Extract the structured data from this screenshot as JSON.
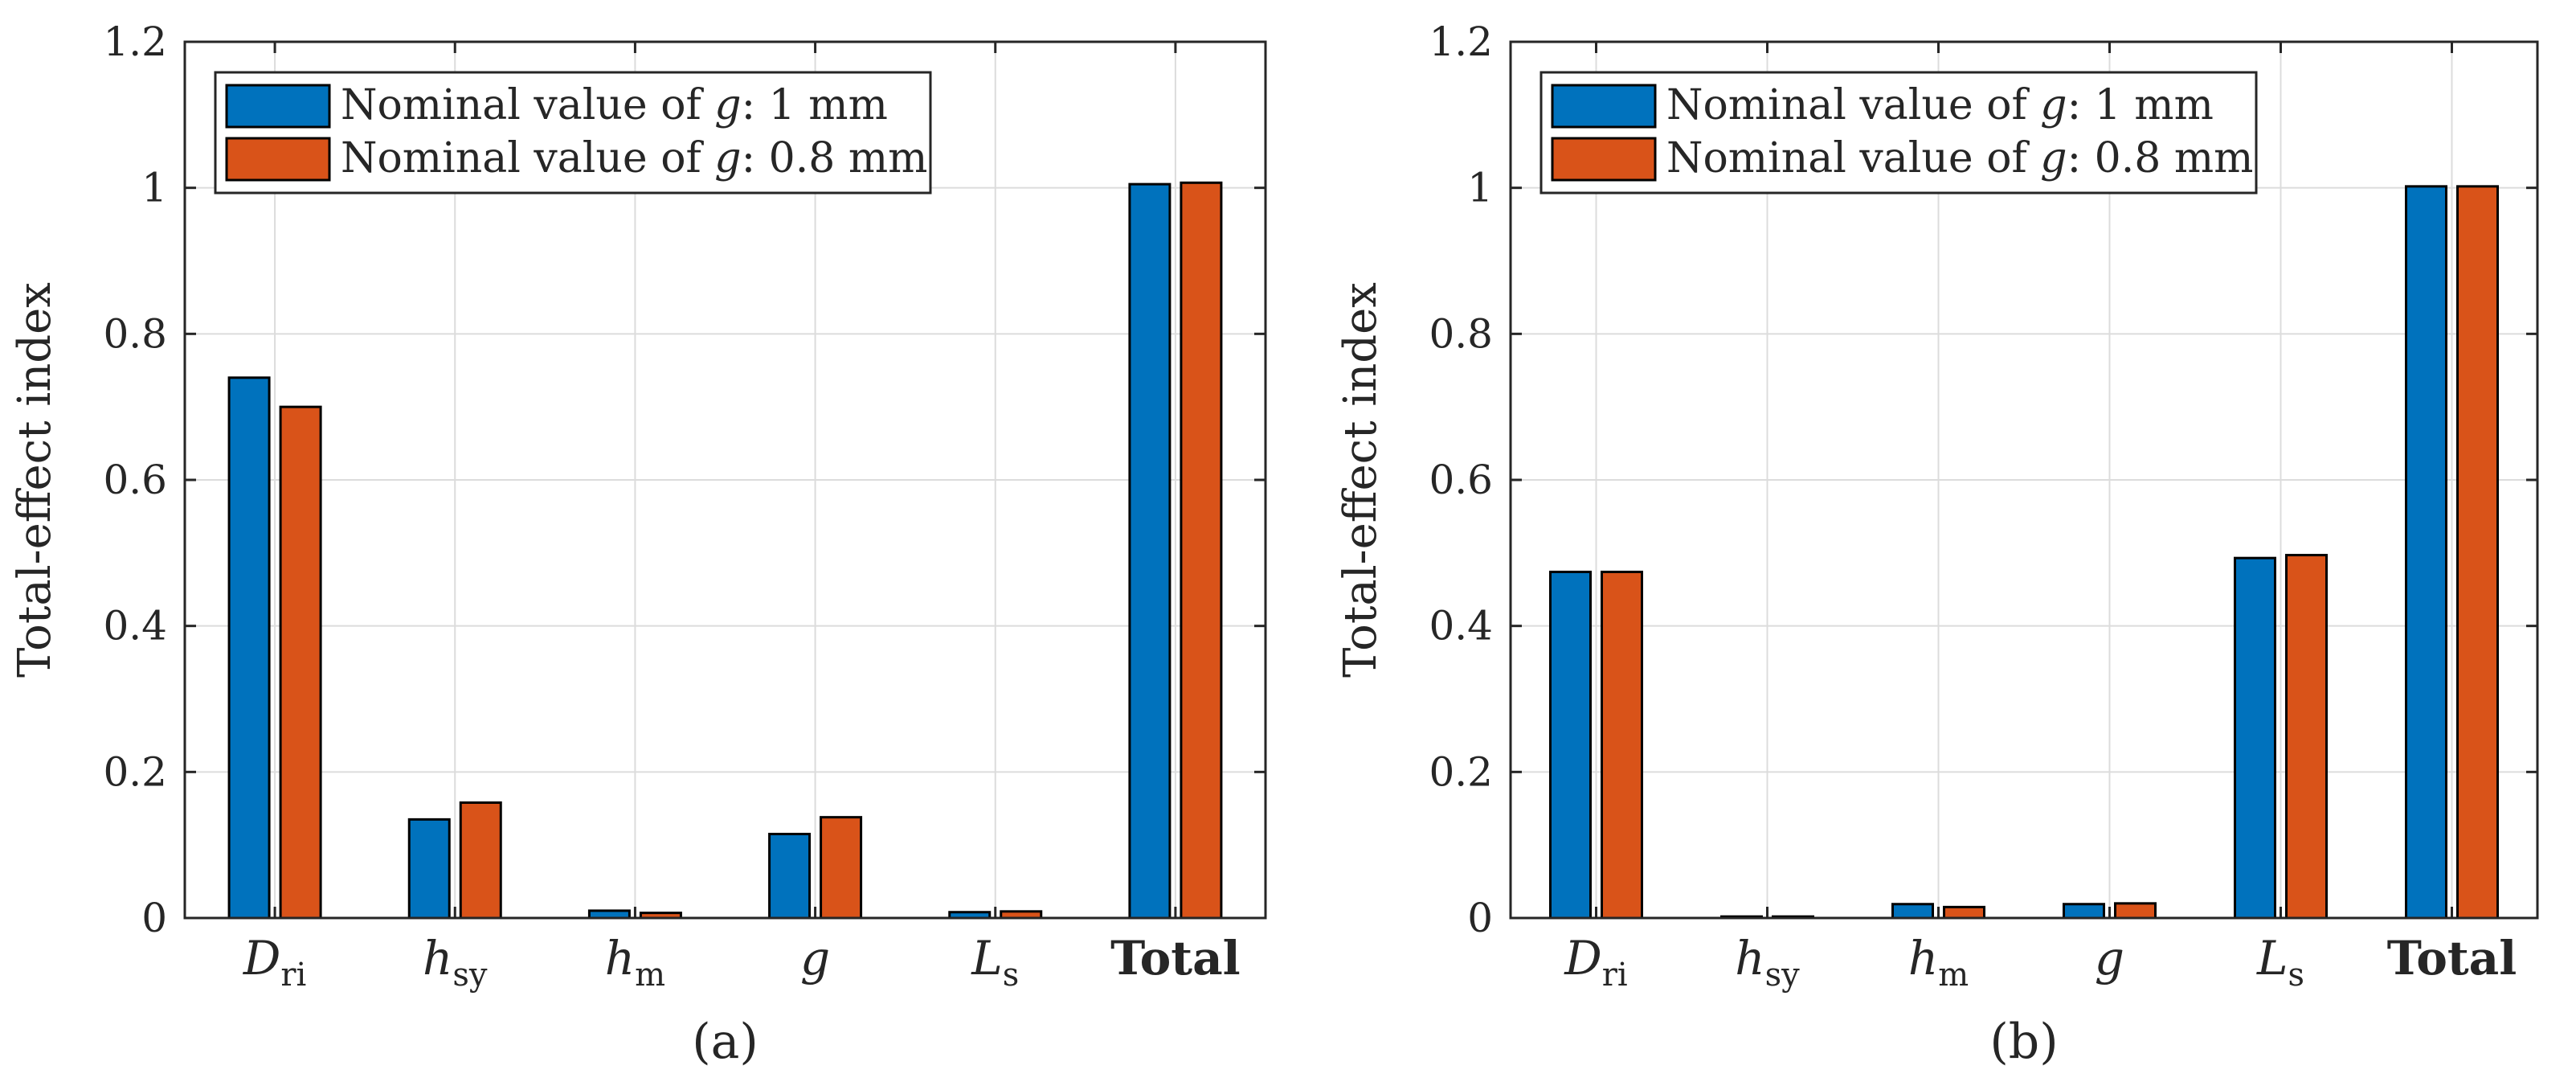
{
  "colors": {
    "series_1": "#0072BD",
    "series_2": "#D95319",
    "grid": "#dcdcdc",
    "axis": "#262626"
  },
  "chart_data": [
    {
      "type": "bar",
      "caption": "(a)",
      "ylabel": "Total-effect index",
      "xlabel": "",
      "ylim": [
        0,
        1.2
      ],
      "yticks": [
        0,
        0.2,
        0.4,
        0.6,
        0.8,
        1,
        1.2
      ],
      "grid": true,
      "legend_position": "top-left",
      "categories": [
        {
          "base": "D",
          "sub": "ri",
          "italic": true,
          "bold": false
        },
        {
          "base": "h",
          "sub": "sy",
          "italic": true,
          "bold": false
        },
        {
          "base": "h",
          "sub": "m",
          "italic": true,
          "bold": false
        },
        {
          "base": "g",
          "sub": "",
          "italic": true,
          "bold": false
        },
        {
          "base": "L",
          "sub": "s",
          "italic": true,
          "bold": false
        },
        {
          "base": "Total",
          "sub": "",
          "italic": false,
          "bold": true
        }
      ],
      "series": [
        {
          "name": "Nominal value of g: 1 mm",
          "label_pre": "Nominal value of ",
          "label_var": "g",
          "label_post": ": 1 mm",
          "values": [
            0.74,
            0.135,
            0.01,
            0.115,
            0.008,
            1.005
          ]
        },
        {
          "name": "Nominal value of g: 0.8 mm",
          "label_pre": "Nominal value of ",
          "label_var": "g",
          "label_post": ": 0.8 mm",
          "values": [
            0.7,
            0.158,
            0.007,
            0.138,
            0.009,
            1.007
          ]
        }
      ]
    },
    {
      "type": "bar",
      "caption": "(b)",
      "ylabel": "Total-effect index",
      "xlabel": "",
      "ylim": [
        0,
        1.2
      ],
      "yticks": [
        0,
        0.2,
        0.4,
        0.6,
        0.8,
        1,
        1.2
      ],
      "grid": true,
      "legend_position": "top-left",
      "categories": [
        {
          "base": "D",
          "sub": "ri",
          "italic": true,
          "bold": false
        },
        {
          "base": "h",
          "sub": "sy",
          "italic": true,
          "bold": false
        },
        {
          "base": "h",
          "sub": "m",
          "italic": true,
          "bold": false
        },
        {
          "base": "g",
          "sub": "",
          "italic": true,
          "bold": false
        },
        {
          "base": "L",
          "sub": "s",
          "italic": true,
          "bold": false
        },
        {
          "base": "Total",
          "sub": "",
          "italic": false,
          "bold": true
        }
      ],
      "series": [
        {
          "name": "Nominal value of g: 1 mm",
          "label_pre": "Nominal value of ",
          "label_var": "g",
          "label_post": ": 1 mm",
          "values": [
            0.474,
            0.002,
            0.019,
            0.019,
            0.493,
            1.002
          ]
        },
        {
          "name": "Nominal value of g: 0.8 mm",
          "label_pre": "Nominal value of ",
          "label_var": "g",
          "label_post": ": 0.8 mm",
          "values": [
            0.474,
            0.002,
            0.015,
            0.02,
            0.497,
            1.002
          ]
        }
      ]
    }
  ]
}
